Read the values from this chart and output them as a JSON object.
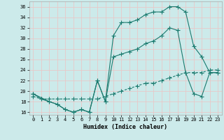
{
  "xlabel": "Humidex (Indice chaleur)",
  "bg_color": "#cceaea",
  "grid_color": "#e8c8c8",
  "line_color": "#1a7a6e",
  "line1_x": [
    0,
    1,
    2,
    3,
    4,
    5,
    6,
    7,
    8,
    9,
    10,
    11,
    12,
    13,
    14,
    15,
    16,
    17,
    18,
    19,
    20,
    21,
    22,
    23
  ],
  "line1_y": [
    19.5,
    18.5,
    18.0,
    17.5,
    16.5,
    16.0,
    16.5,
    16.0,
    22.0,
    18.0,
    30.5,
    33.0,
    33.0,
    33.5,
    34.5,
    35.0,
    35.0,
    36.0,
    36.0,
    35.0,
    28.5,
    26.5,
    23.5,
    23.5
  ],
  "line2_x": [
    0,
    2,
    3,
    4,
    5,
    6,
    7,
    8,
    9,
    10,
    11,
    12,
    13,
    14,
    15,
    16,
    17,
    18,
    19,
    20,
    21,
    22,
    23
  ],
  "line2_y": [
    19.5,
    18.0,
    17.5,
    16.5,
    16.0,
    16.5,
    16.0,
    22.0,
    18.0,
    26.5,
    27.0,
    27.5,
    28.0,
    29.0,
    29.5,
    30.5,
    32.0,
    31.5,
    23.5,
    19.5,
    19.0,
    23.5,
    23.5
  ],
  "line3_x": [
    0,
    1,
    2,
    3,
    4,
    5,
    6,
    7,
    8,
    9,
    10,
    11,
    12,
    13,
    14,
    15,
    16,
    17,
    18,
    19,
    20,
    21,
    22,
    23
  ],
  "line3_y": [
    19.0,
    18.5,
    18.5,
    18.5,
    18.5,
    18.5,
    18.5,
    18.5,
    18.5,
    19.0,
    19.5,
    20.0,
    20.5,
    21.0,
    21.5,
    21.5,
    22.0,
    22.5,
    23.0,
    23.5,
    23.5,
    23.5,
    24.0,
    24.0
  ],
  "xlim": [
    -0.5,
    23.5
  ],
  "ylim": [
    15.5,
    37.0
  ],
  "yticks": [
    16,
    18,
    20,
    22,
    24,
    26,
    28,
    30,
    32,
    34,
    36
  ],
  "xticks": [
    0,
    1,
    2,
    3,
    4,
    5,
    6,
    7,
    8,
    9,
    10,
    11,
    12,
    13,
    14,
    15,
    16,
    17,
    18,
    19,
    20,
    21,
    22,
    23
  ]
}
